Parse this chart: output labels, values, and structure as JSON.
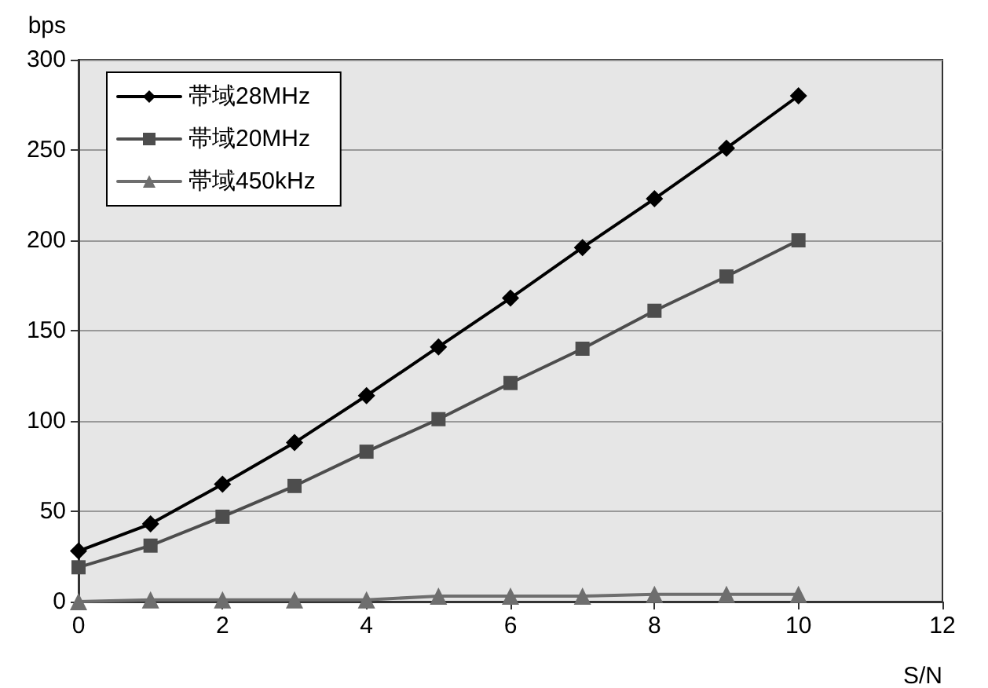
{
  "chart_data": {
    "type": "line",
    "xlabel": "S/N",
    "ylabel": "bps",
    "x": [
      0,
      1,
      2,
      3,
      4,
      5,
      6,
      7,
      8,
      9,
      10
    ],
    "series": [
      {
        "name": "帯域28MHz",
        "color": "#000000",
        "marker": "diamond",
        "values": [
          28,
          43,
          65,
          88,
          114,
          141,
          168,
          196,
          223,
          251,
          280
        ]
      },
      {
        "name": "帯域20MHz",
        "color": "#4d4d4d",
        "marker": "square",
        "values": [
          19,
          31,
          47,
          64,
          83,
          101,
          121,
          140,
          161,
          180,
          200
        ]
      },
      {
        "name": "帯域450kHz",
        "color": "#6e6e6e",
        "marker": "triangle",
        "values": [
          0,
          1,
          1,
          1,
          1,
          3,
          3,
          3,
          4,
          4,
          4
        ]
      }
    ],
    "xlim": [
      0,
      12
    ],
    "xticks": [
      0,
      2,
      4,
      6,
      8,
      10,
      12
    ],
    "ylim": [
      0,
      300
    ],
    "yticks": [
      0,
      50,
      100,
      150,
      200,
      250,
      300
    ],
    "grid": "y",
    "legend": "top left",
    "line_style": "solid"
  }
}
